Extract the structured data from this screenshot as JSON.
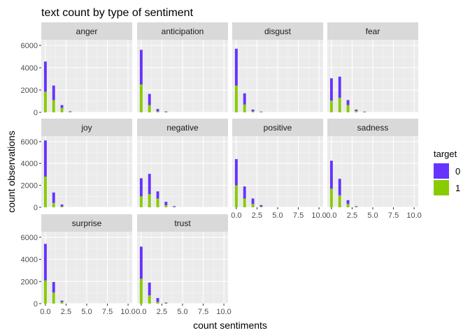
{
  "chart_data": {
    "type": "bar",
    "subtype": "faceted-stacked-histogram",
    "title": "text count by type of sentiment",
    "xlabel": "count sentiments",
    "ylabel": "count observations",
    "xlim": [
      -0.5,
      10.5
    ],
    "ylim": [
      0,
      6500
    ],
    "x_ticks": [
      0,
      2.5,
      5,
      7.5,
      10
    ],
    "x_tick_labels": [
      "0.0",
      "2.5",
      "5.0",
      "7.5",
      "10.0"
    ],
    "y_ticks": [
      0,
      2000,
      4000,
      6000
    ],
    "y_tick_labels": [
      "0",
      "2000",
      "4000",
      "6000"
    ],
    "grid": true,
    "legend": {
      "title": "target",
      "position": "right",
      "entries": [
        {
          "label": "0",
          "color": "#6633ff"
        },
        {
          "label": "1",
          "color": "#88cc00"
        }
      ]
    },
    "facets": [
      {
        "name": "anger",
        "x": [
          0,
          1,
          2,
          3
        ],
        "target_0": [
          2700,
          1300,
          250,
          50
        ],
        "target_1": [
          1850,
          1100,
          400,
          40
        ]
      },
      {
        "name": "anticipation",
        "x": [
          0,
          1,
          2,
          3
        ],
        "target_0": [
          3100,
          1000,
          200,
          60
        ],
        "target_1": [
          2500,
          650,
          100,
          20
        ]
      },
      {
        "name": "disgust",
        "x": [
          0,
          1,
          2,
          3
        ],
        "target_0": [
          3300,
          1000,
          150,
          50
        ],
        "target_1": [
          2400,
          700,
          100,
          20
        ]
      },
      {
        "name": "fear",
        "x": [
          0,
          1,
          2,
          3,
          4
        ],
        "target_0": [
          2000,
          1900,
          450,
          120,
          40
        ],
        "target_1": [
          1050,
          1300,
          650,
          130,
          30
        ]
      },
      {
        "name": "joy",
        "x": [
          0,
          1,
          2
        ],
        "target_0": [
          3300,
          950,
          170
        ],
        "target_1": [
          2800,
          400,
          80
        ]
      },
      {
        "name": "negative",
        "x": [
          0,
          1,
          2,
          3,
          4
        ],
        "target_0": [
          1650,
          1850,
          650,
          300,
          70
        ],
        "target_1": [
          1000,
          1200,
          800,
          200,
          30
        ]
      },
      {
        "name": "positive",
        "x": [
          0,
          1,
          2,
          3
        ],
        "target_0": [
          2400,
          1100,
          500,
          130
        ],
        "target_1": [
          2000,
          800,
          300,
          70
        ]
      },
      {
        "name": "sadness",
        "x": [
          0,
          1,
          2,
          3
        ],
        "target_0": [
          2550,
          1500,
          350,
          60
        ],
        "target_1": [
          1700,
          1100,
          300,
          40
        ]
      },
      {
        "name": "surprise",
        "x": [
          0,
          1,
          2
        ],
        "target_0": [
          3300,
          950,
          120
        ],
        "target_1": [
          2100,
          1000,
          150
        ]
      },
      {
        "name": "trust",
        "x": [
          0,
          1,
          2,
          3
        ],
        "target_0": [
          2900,
          1150,
          350,
          60
        ],
        "target_1": [
          2250,
          750,
          150,
          30
        ]
      }
    ]
  }
}
